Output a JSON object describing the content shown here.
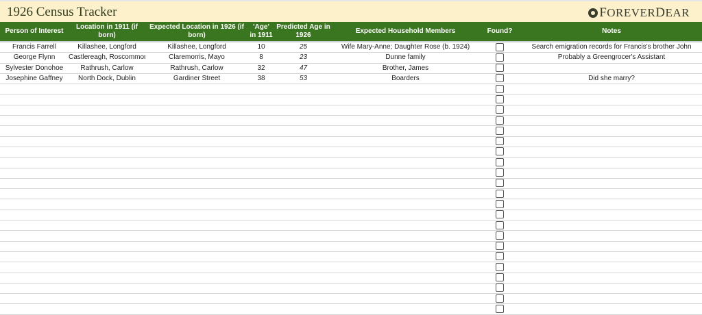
{
  "title": "1926 Census Tracker",
  "brand": {
    "first": "F",
    "rest1": "OREVER ",
    "second": "D",
    "rest2": "EAR",
    "icon": "rosette-logo-icon"
  },
  "columns": [
    "Person of Interest",
    "Location in 1911 (if born)",
    "Expected Location in 1926 (if born)",
    "'Age' in 1911",
    "Predicted Age in 1926",
    "Expected Household Members",
    "Found?",
    "Notes"
  ],
  "rows": [
    {
      "person": "Francis Farrell",
      "loc1911": "Killashee, Longford",
      "loc1926": "Killashee, Longford",
      "age1911": "10",
      "age1926": "25",
      "household": "Wife Mary-Anne; Daughter Rose (b. 1924)",
      "found": false,
      "notes": "Search emigration records for Francis's brother John"
    },
    {
      "person": "George Flynn",
      "loc1911": "Castlereagh, Roscommon",
      "loc1926": "Claremorris, Mayo",
      "age1911": "8",
      "age1926": "23",
      "household": "Dunne family",
      "found": false,
      "notes": "Probably a Greengrocer's Assistant"
    },
    {
      "person": "Sylvester Donohoe",
      "loc1911": "Rathrush, Carlow",
      "loc1926": "Rathrush, Carlow",
      "age1911": "32",
      "age1926": "47",
      "household": "Brother, James",
      "found": false,
      "notes": ""
    },
    {
      "person": "Josephine Gaffney",
      "loc1911": "North Dock, Dublin",
      "loc1926": "Gardiner Street",
      "age1911": "38",
      "age1926": "53",
      "household": "Boarders",
      "found": false,
      "notes": "Did she marry?"
    }
  ],
  "empty_rows": 22,
  "colors": {
    "header": "#3a761f",
    "titlebar": "#fdf1cc"
  }
}
